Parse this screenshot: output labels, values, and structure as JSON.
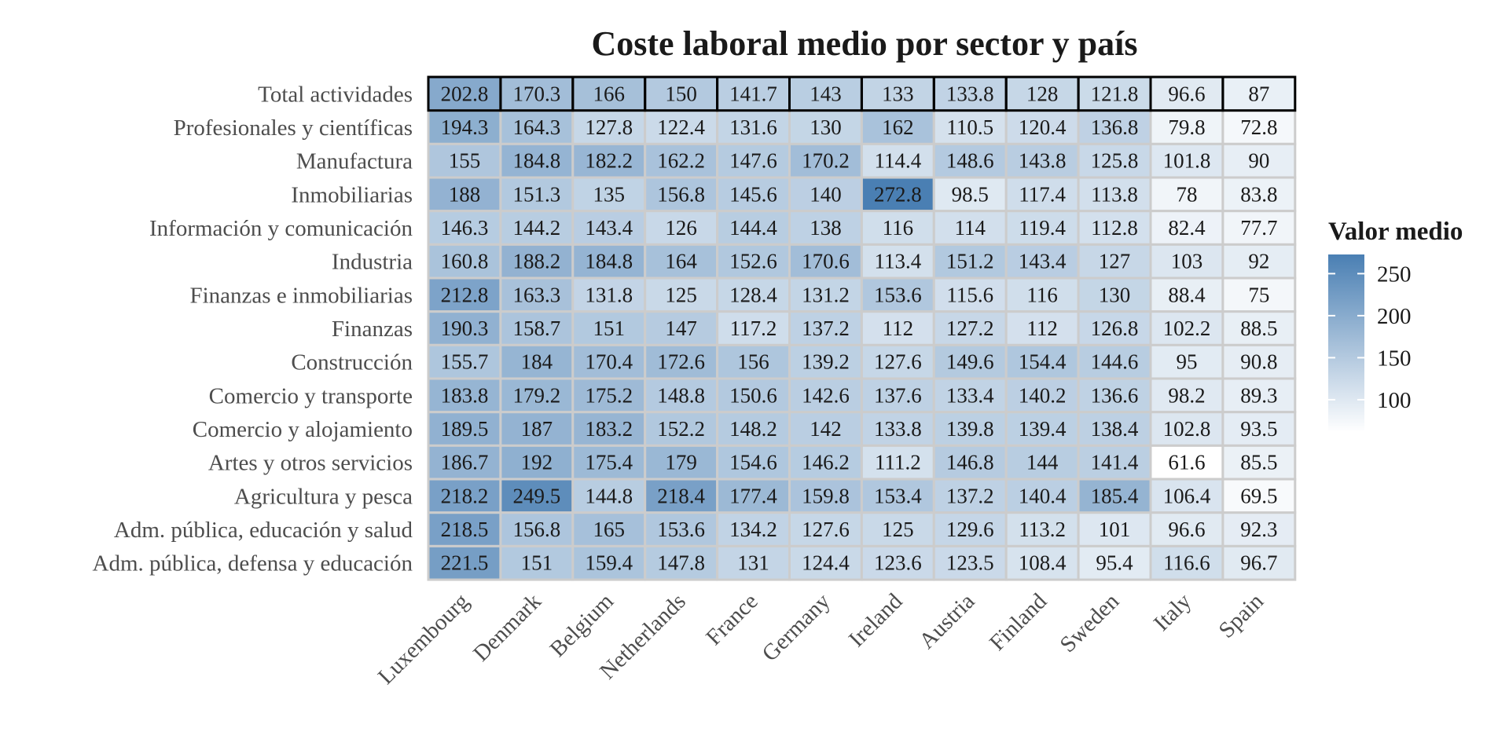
{
  "chart_data": {
    "type": "heatmap",
    "title": "Coste laboral medio por sector y país",
    "columns": [
      "Luxembourg",
      "Denmark",
      "Belgium",
      "Netherlands",
      "France",
      "Germany",
      "Ireland",
      "Austria",
      "Finland",
      "Sweden",
      "Italy",
      "Spain"
    ],
    "rows": [
      "Total actividades",
      "Profesionales y científicas",
      "Manufactura",
      "Inmobiliarias",
      "Información y comunicación",
      "Industria",
      "Finanzas e inmobiliarias",
      "Finanzas",
      "Construcción",
      "Comercio y transporte",
      "Comercio y alojamiento",
      "Artes y otros servicios",
      "Agricultura y pesca",
      "Adm. pública, educación y salud",
      "Adm. pública, defensa y educación"
    ],
    "values": [
      [
        "202.8",
        "170.3",
        "166",
        "150",
        "141.7",
        "143",
        "133",
        "133.8",
        "128",
        "121.8",
        "96.6",
        "87"
      ],
      [
        "194.3",
        "164.3",
        "127.8",
        "122.4",
        "131.6",
        "130",
        "162",
        "110.5",
        "120.4",
        "136.8",
        "79.8",
        "72.8"
      ],
      [
        "155",
        "184.8",
        "182.2",
        "162.2",
        "147.6",
        "170.2",
        "114.4",
        "148.6",
        "143.8",
        "125.8",
        "101.8",
        "90"
      ],
      [
        "188",
        "151.3",
        "135",
        "156.8",
        "145.6",
        "140",
        "272.8",
        "98.5",
        "117.4",
        "113.8",
        "78",
        "83.8"
      ],
      [
        "146.3",
        "144.2",
        "143.4",
        "126",
        "144.4",
        "138",
        "116",
        "114",
        "119.4",
        "112.8",
        "82.4",
        "77.7"
      ],
      [
        "160.8",
        "188.2",
        "184.8",
        "164",
        "152.6",
        "170.6",
        "113.4",
        "151.2",
        "143.4",
        "127",
        "103",
        "92"
      ],
      [
        "212.8",
        "163.3",
        "131.8",
        "125",
        "128.4",
        "131.2",
        "153.6",
        "115.6",
        "116",
        "130",
        "88.4",
        "75"
      ],
      [
        "190.3",
        "158.7",
        "151",
        "147",
        "117.2",
        "137.2",
        "112",
        "127.2",
        "112",
        "126.8",
        "102.2",
        "88.5"
      ],
      [
        "155.7",
        "184",
        "170.4",
        "172.6",
        "156",
        "139.2",
        "127.6",
        "149.6",
        "154.4",
        "144.6",
        "95",
        "90.8"
      ],
      [
        "183.8",
        "179.2",
        "175.2",
        "148.8",
        "150.6",
        "142.6",
        "137.6",
        "133.4",
        "140.2",
        "136.6",
        "98.2",
        "89.3"
      ],
      [
        "189.5",
        "187",
        "183.2",
        "152.2",
        "148.2",
        "142",
        "133.8",
        "139.8",
        "139.4",
        "138.4",
        "102.8",
        "93.5"
      ],
      [
        "186.7",
        "192",
        "175.4",
        "179",
        "154.6",
        "146.2",
        "111.2",
        "146.8",
        "144",
        "141.4",
        "61.6",
        "85.5"
      ],
      [
        "218.2",
        "249.5",
        "144.8",
        "218.4",
        "177.4",
        "159.8",
        "153.4",
        "137.2",
        "140.4",
        "185.4",
        "106.4",
        "69.5"
      ],
      [
        "218.5",
        "156.8",
        "165",
        "153.6",
        "134.2",
        "127.6",
        "125",
        "129.6",
        "113.2",
        "101",
        "96.6",
        "92.3"
      ],
      [
        "221.5",
        "151",
        "159.4",
        "147.8",
        "131",
        "124.4",
        "123.6",
        "123.5",
        "108.4",
        "95.4",
        "116.6",
        "96.7"
      ]
    ],
    "highlighted_row": "Total actividades",
    "legend": {
      "title": "Valor medio",
      "ticks": [
        100,
        150,
        200,
        250
      ],
      "range": [
        61.6,
        272.8
      ],
      "placement": "right"
    },
    "colors": {
      "low": "#ffffff",
      "high": "#4a7fb3",
      "cell_border": "#cccccc",
      "highlight_border": "#000000"
    }
  }
}
